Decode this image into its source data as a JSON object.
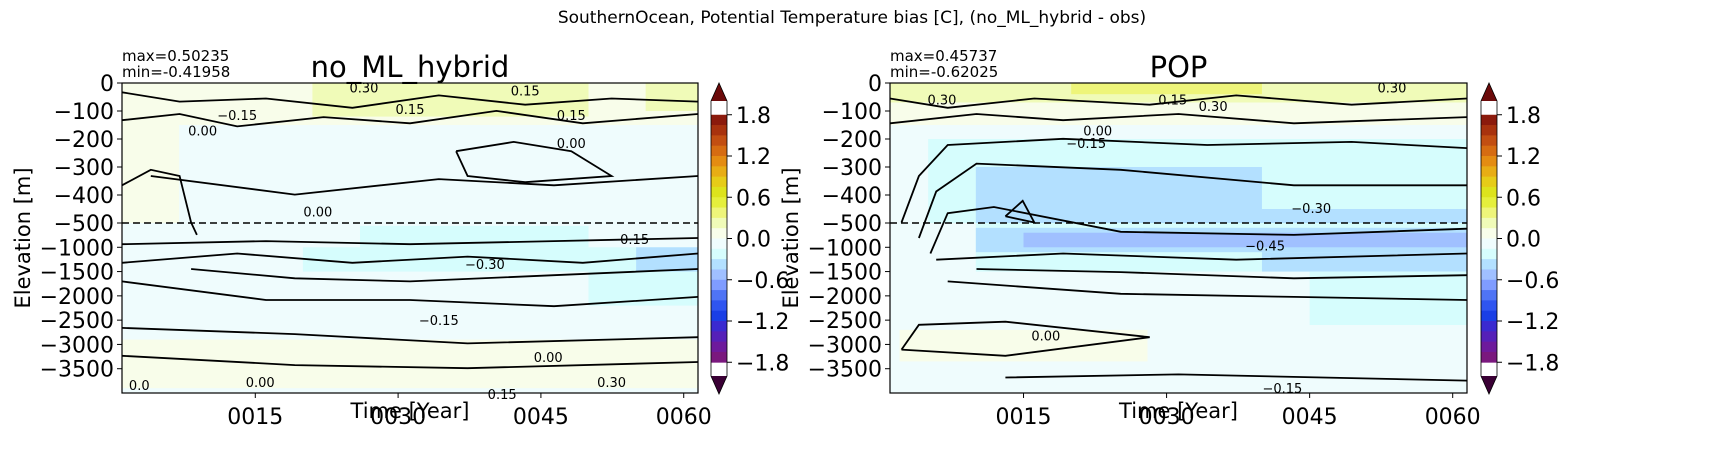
{
  "suptitle": "SouthernOcean, Potential Temperature bias [C], (no_ML_hybrid - obs)",
  "colorbar": {
    "ticks": [
      "1.8",
      "1.2",
      "0.6",
      "0.0",
      "−0.6",
      "−1.2",
      "−1.8"
    ],
    "tick_values": [
      1.8,
      1.2,
      0.6,
      0.0,
      -0.6,
      -1.2,
      -1.8
    ],
    "range": [
      -2.0,
      2.0
    ],
    "levels": [
      {
        "min": 1.8,
        "max": 2.0,
        "color": "#6b0a0a"
      },
      {
        "min": 1.65,
        "max": 1.8,
        "color": "#8b1a0c"
      },
      {
        "min": 1.5,
        "max": 1.65,
        "color": "#a8320e"
      },
      {
        "min": 1.35,
        "max": 1.5,
        "color": "#c24e12"
      },
      {
        "min": 1.2,
        "max": 1.35,
        "color": "#d66c12"
      },
      {
        "min": 1.05,
        "max": 1.2,
        "color": "#e48c12"
      },
      {
        "min": 0.9,
        "max": 1.05,
        "color": "#e8ad15"
      },
      {
        "min": 0.75,
        "max": 0.9,
        "color": "#e6cc18"
      },
      {
        "min": 0.6,
        "max": 0.75,
        "color": "#dde31c"
      },
      {
        "min": 0.45,
        "max": 0.6,
        "color": "#e5ef3c"
      },
      {
        "min": 0.3,
        "max": 0.45,
        "color": "#eef57a"
      },
      {
        "min": 0.15,
        "max": 0.3,
        "color": "#f0fbb8"
      },
      {
        "min": 0.0,
        "max": 0.15,
        "color": "#f8fdea"
      },
      {
        "min": -0.15,
        "max": 0.0,
        "color": "#effcfd"
      },
      {
        "min": -0.3,
        "max": -0.15,
        "color": "#d6fdfd"
      },
      {
        "min": -0.45,
        "max": -0.3,
        "color": "#b3e0ff"
      },
      {
        "min": -0.6,
        "max": -0.45,
        "color": "#a0c0ff"
      },
      {
        "min": -0.75,
        "max": -0.6,
        "color": "#7f9cff"
      },
      {
        "min": -0.9,
        "max": -0.75,
        "color": "#4f74f5"
      },
      {
        "min": -1.05,
        "max": -0.9,
        "color": "#2f55f0"
      },
      {
        "min": -1.2,
        "max": -1.05,
        "color": "#1a3fe6"
      },
      {
        "min": -1.35,
        "max": -1.2,
        "color": "#3a2ad0"
      },
      {
        "min": -1.5,
        "max": -1.35,
        "color": "#5520b8"
      },
      {
        "min": -1.65,
        "max": -1.5,
        "color": "#6d1a9c"
      },
      {
        "min": -1.8,
        "max": -1.65,
        "color": "#7a187e"
      },
      {
        "min": -2.0,
        "max": -1.8,
        "color": "#3a0035"
      }
    ]
  },
  "chart_data": [
    {
      "type": "heatmap",
      "title": "no_ML_hybrid",
      "stats_max": "max=0.50235",
      "stats_min": "min=-0.41958",
      "xlabel": "Time [Year]",
      "ylabel": "Elevation [m]",
      "xticks": [
        "0015",
        "0030",
        "0045",
        "0060"
      ],
      "xtick_values": [
        15,
        30,
        45,
        60
      ],
      "xlim": [
        1,
        61.5
      ],
      "yticks": [
        "0",
        "−100",
        "−200",
        "−300",
        "−400",
        "−500",
        "−1000",
        "−1500",
        "−2000",
        "−2500",
        "−3000",
        "−3500"
      ],
      "ytick_values": [
        0,
        -100,
        -200,
        -300,
        -400,
        -500,
        -1000,
        -1500,
        -2000,
        -2500,
        -3000,
        -3500
      ],
      "ylim": [
        -4000,
        0
      ],
      "split_depth": -500,
      "contour_labels": [
        "0.30",
        "0.15",
        "0.15",
        "0.15",
        "−0.15",
        "0.00",
        "0.00",
        "0.00",
        "0.15",
        "−0.30",
        "−0.15",
        "0.00",
        "0.00",
        "0.15",
        "0.0",
        "0.30"
      ],
      "regions": [
        {
          "x": [
            1,
            61.5
          ],
          "y": [
            -4000,
            0
          ],
          "value": -0.05
        },
        {
          "x": [
            1,
            61.5
          ],
          "y": [
            -150,
            0
          ],
          "value": 0.08
        },
        {
          "x": [
            21,
            50
          ],
          "y": [
            -120,
            0
          ],
          "value": 0.2
        },
        {
          "x": [
            56,
            61.5
          ],
          "y": [
            -100,
            0
          ],
          "value": 0.2
        },
        {
          "x": [
            1,
            7
          ],
          "y": [
            -500,
            -150
          ],
          "value": 0.05
        },
        {
          "x": [
            26,
            50
          ],
          "y": [
            -1000,
            -560
          ],
          "value": -0.2
        },
        {
          "x": [
            20,
            61.5
          ],
          "y": [
            -1500,
            -1000
          ],
          "value": -0.2
        },
        {
          "x": [
            50,
            61.5
          ],
          "y": [
            -2200,
            -1500
          ],
          "value": -0.22
        },
        {
          "x": [
            55,
            61.5
          ],
          "y": [
            -1500,
            -1000
          ],
          "value": -0.35
        },
        {
          "x": [
            1,
            61.5
          ],
          "y": [
            -3900,
            -2900
          ],
          "value": 0.05
        }
      ]
    },
    {
      "type": "heatmap",
      "title": "POP",
      "stats_max": "max=0.45737",
      "stats_min": "min=-0.62025",
      "xlabel": "Time [Year]",
      "ylabel": "Elevation [m]",
      "xticks": [
        "0015",
        "0030",
        "0045",
        "0060"
      ],
      "xtick_values": [
        15,
        30,
        45,
        60
      ],
      "xlim": [
        1,
        61.5
      ],
      "yticks": [
        "0",
        "−100",
        "−200",
        "−300",
        "−400",
        "−500",
        "−1000",
        "−1500",
        "−2000",
        "−2500",
        "−3000",
        "−3500"
      ],
      "ytick_values": [
        0,
        -100,
        -200,
        -300,
        -400,
        -500,
        -1000,
        -1500,
        -2000,
        -2500,
        -3000,
        -3500
      ],
      "ylim": [
        -4000,
        0
      ],
      "split_depth": -500,
      "contour_labels": [
        "0.30",
        "0.30",
        "0.15",
        "0.30",
        "0.00",
        "−0.15",
        "−0.30",
        "−0.45",
        "0.00",
        "−0.15"
      ],
      "regions": [
        {
          "x": [
            1,
            61.5
          ],
          "y": [
            -4000,
            0
          ],
          "value": -0.05
        },
        {
          "x": [
            1,
            61.5
          ],
          "y": [
            -70,
            0
          ],
          "value": 0.2
        },
        {
          "x": [
            20,
            40
          ],
          "y": [
            -40,
            0
          ],
          "value": 0.35
        },
        {
          "x": [
            1,
            61.5
          ],
          "y": [
            -150,
            -70
          ],
          "value": 0.05
        },
        {
          "x": [
            5,
            61.5
          ],
          "y": [
            -500,
            -200
          ],
          "value": -0.2
        },
        {
          "x": [
            10,
            40
          ],
          "y": [
            -500,
            -300
          ],
          "value": -0.35
        },
        {
          "x": [
            35,
            61.5
          ],
          "y": [
            -500,
            -450
          ],
          "value": -0.35
        },
        {
          "x": [
            10,
            61.5
          ],
          "y": [
            -1500,
            -500
          ],
          "value": -0.2
        },
        {
          "x": [
            10,
            61.5
          ],
          "y": [
            -1100,
            -600
          ],
          "value": -0.35
        },
        {
          "x": [
            15,
            61.5
          ],
          "y": [
            -1000,
            -700
          ],
          "value": -0.5
        },
        {
          "x": [
            40,
            61.5
          ],
          "y": [
            -1500,
            -1100
          ],
          "value": -0.35
        },
        {
          "x": [
            45,
            61.5
          ],
          "y": [
            -2600,
            -1500
          ],
          "value": -0.2
        },
        {
          "x": [
            2,
            28
          ],
          "y": [
            -3350,
            -2700
          ],
          "value": 0.05
        }
      ]
    }
  ]
}
